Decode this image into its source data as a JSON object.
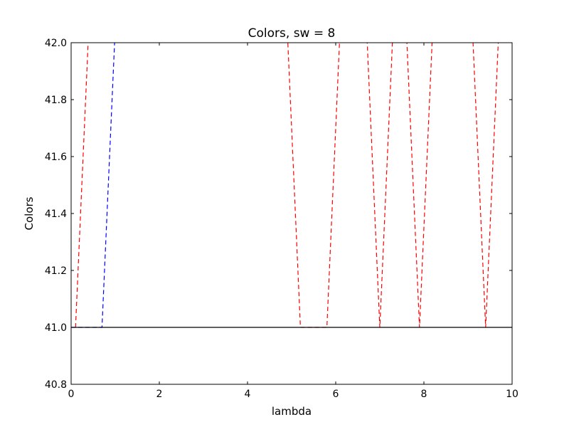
{
  "chart_data": {
    "type": "line",
    "title": "Colors, sw = 8",
    "xlabel": "lambda",
    "ylabel": "Colors",
    "xlim": [
      0,
      10
    ],
    "ylim": [
      40.8,
      42.0
    ],
    "xticks": [
      "0",
      "2",
      "4",
      "6",
      "8",
      "10"
    ],
    "yticks": [
      "40.8",
      "41.0",
      "41.2",
      "41.4",
      "41.6",
      "41.8",
      "42.0"
    ],
    "grid": false,
    "legend": "none",
    "series": [
      {
        "color": "#ff0000",
        "style": "dashed",
        "points": [
          [
            0.1,
            41.0
          ],
          [
            0.4,
            42.05
          ],
          [
            4.9,
            42.05
          ],
          [
            5.2,
            41.0
          ],
          [
            5.8,
            41.0
          ],
          [
            6.1,
            42.05
          ],
          [
            6.7,
            42.05
          ],
          [
            7.0,
            41.0
          ],
          [
            7.3,
            42.05
          ],
          [
            7.6,
            42.05
          ],
          [
            7.9,
            41.0
          ],
          [
            8.2,
            42.05
          ],
          [
            9.1,
            42.05
          ],
          [
            9.4,
            41.0
          ],
          [
            9.7,
            42.05
          ]
        ]
      },
      {
        "color": "#0000ff",
        "style": "dashed",
        "points": [
          [
            0.0,
            41.0
          ],
          [
            0.7,
            41.0
          ],
          [
            1.0,
            42.05
          ]
        ]
      },
      {
        "color": "#000000",
        "style": "solid",
        "points": [
          [
            0.0,
            41.0
          ],
          [
            10.0,
            41.0
          ]
        ]
      }
    ]
  }
}
